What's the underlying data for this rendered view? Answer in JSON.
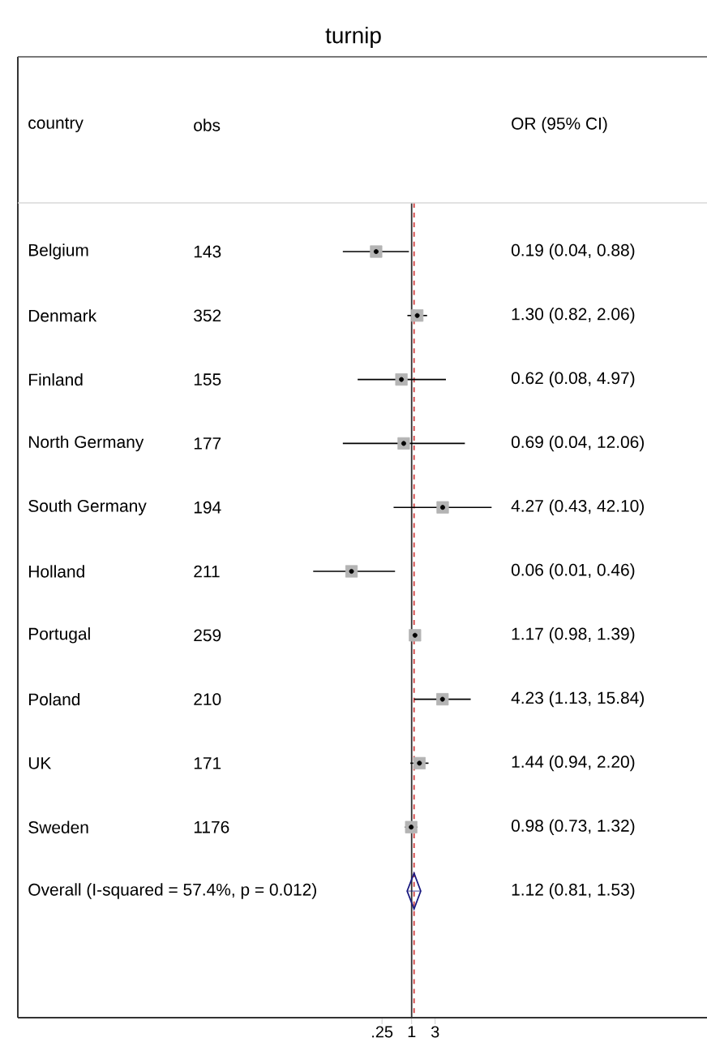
{
  "chart_data": {
    "type": "scatter",
    "orientation": "horizontal",
    "title": "turnip",
    "categories": [
      "Belgium",
      "Denmark",
      "Finland",
      "North Germany",
      "South Germany",
      "Holland",
      "Portugal",
      "Poland",
      "UK",
      "Sweden",
      "Overall  (I-squared = 57.4%, p = 0.012)"
    ],
    "series": [
      {
        "color": "#b4b4b4",
        "marker": "square",
        "values": [
          0.19,
          1.3,
          0.62,
          0.69,
          4.27,
          0.06,
          1.17,
          4.23,
          1.44,
          0.98,
          null
        ],
        "errors": [
          [
            0.04,
            0.88
          ],
          [
            0.82,
            2.06
          ],
          [
            0.08,
            4.97
          ],
          [
            0.04,
            12.06
          ],
          [
            0.43,
            42.1
          ],
          [
            0.01,
            0.46
          ],
          [
            0.98,
            1.39
          ],
          [
            1.13,
            15.84
          ],
          [
            0.94,
            2.2
          ],
          [
            0.73,
            1.32
          ],
          null
        ]
      },
      {
        "color": "#1a1a80",
        "marker": "diamond",
        "values": [
          null,
          null,
          null,
          null,
          null,
          null,
          null,
          null,
          null,
          null,
          1.12
        ],
        "errors": [
          null,
          null,
          null,
          null,
          null,
          null,
          null,
          null,
          null,
          null,
          [
            0.81,
            1.53
          ]
        ]
      }
    ],
    "value_labels": [
      "0.19 (0.04, 0.88)",
      "1.30 (0.82, 2.06)",
      "0.62 (0.08, 4.97)",
      "0.69 (0.04, 12.06)",
      "4.27 (0.43, 42.10)",
      "0.06 (0.01, 0.46)",
      "1.17 (0.98, 1.39)",
      "4.23 (1.13, 15.84)",
      "1.44 (0.94, 2.20)",
      "0.98 (0.73, 1.32)",
      "1.12 (0.81, 1.53)"
    ],
    "annotations": [
      "country",
      "obs",
      "OR (95% CI)",
      "143",
      "352",
      "155",
      "177",
      "194",
      "211",
      "259",
      "210",
      "171",
      "1176"
    ],
    "log": "x",
    "xlim": [
      1e-08,
      1000000.0
    ],
    "xticks": [
      {
        "value": 0.25,
        "label": ".25"
      },
      1,
      3
    ],
    "ref_lines": [
      {
        "axis": "x",
        "value": 1,
        "color": "#333333"
      },
      {
        "axis": "x",
        "value": 1.12,
        "color": "#d04040",
        "line_style": "dashed"
      }
    ]
  }
}
